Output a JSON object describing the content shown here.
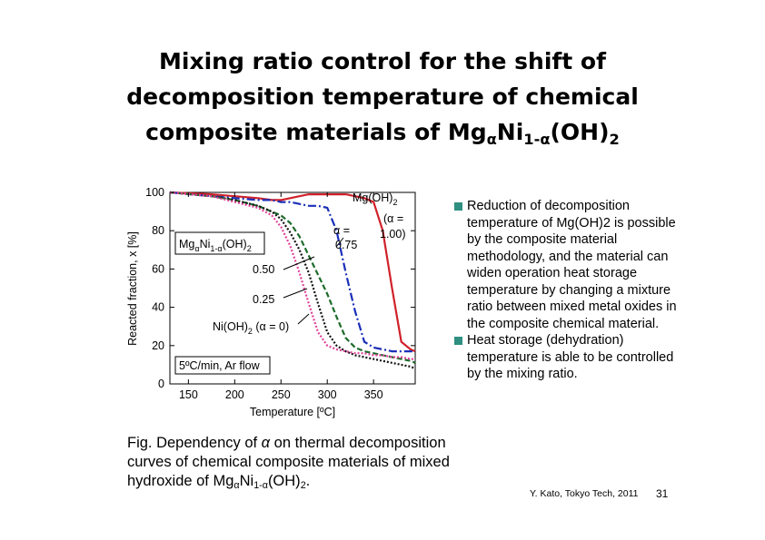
{
  "title": [
    "Mixing ratio control for the shift of",
    "decomposition temperature of chemical",
    "composite materials of Mg",
    "α",
    "Ni",
    "1-α",
    "(OH)",
    "2"
  ],
  "chart_data": {
    "type": "line",
    "x_label": "Temperature [ºC]",
    "y_label": "Reacted fraction, x [%]",
    "xlim": [
      130,
      395
    ],
    "ylim": [
      0,
      100
    ],
    "xticks": [
      150,
      200,
      250,
      300,
      350
    ],
    "yticks": [
      0,
      20,
      40,
      60,
      80,
      100
    ],
    "x": [
      130,
      175,
      200,
      225,
      240,
      250,
      260,
      270,
      280,
      290,
      300,
      310,
      320,
      330,
      340,
      350,
      360,
      370,
      380,
      390,
      395
    ],
    "series": [
      {
        "color": "#d0212a",
        "dash": "solid",
        "values": [
          100,
          99,
          98,
          97,
          96,
          96,
          97,
          98,
          99,
          99,
          99,
          99,
          99,
          98,
          97,
          95,
          80,
          50,
          22,
          18,
          17
        ]
      },
      {
        "color": "#1a2fb8",
        "dash": "dashdot",
        "values": [
          100,
          98,
          97,
          96,
          96,
          95,
          95,
          94,
          93,
          93,
          92,
          80,
          58,
          38,
          22,
          19,
          18,
          17,
          17,
          17,
          17
        ]
      },
      {
        "color": "#1d6b2a",
        "dash": "dashed",
        "values": [
          100,
          98,
          96,
          93,
          90,
          88,
          84,
          77,
          67,
          57,
          47,
          35,
          24,
          19,
          17,
          16,
          15,
          14,
          13,
          12,
          11
        ]
      },
      {
        "color": "#111111",
        "dash": "dotted",
        "values": [
          100,
          98,
          96,
          93,
          90,
          86,
          79,
          70,
          58,
          42,
          27,
          20,
          17,
          15,
          14,
          13,
          12,
          11,
          10,
          9,
          8
        ]
      },
      {
        "color": "#e0409a",
        "dash": "dotted",
        "values": [
          100,
          98,
          95,
          92,
          88,
          82,
          72,
          58,
          42,
          27,
          20,
          18,
          17,
          16,
          16,
          15,
          15,
          14,
          14,
          13,
          13
        ]
      }
    ],
    "annotations": {
      "mg_oh2": [
        "Mg(OH)",
        "2"
      ],
      "alpha_one_a": "(α =",
      "alpha_one_b": "1.00)",
      "alpha_075_a": "α =",
      "alpha_075_b": "0.75",
      "composite": [
        "Mg",
        "α",
        "Ni",
        "1-α",
        "(OH)",
        "2"
      ],
      "alpha_050": "0.50",
      "alpha_025": "0.25",
      "ni_oh2": [
        "Ni(OH)",
        "2",
        " (α = 0)"
      ],
      "condition": "5ºC/min, Ar flow"
    }
  },
  "caption": [
    "Fig.  Dependency of ",
    "α",
    " on thermal decomposition curves of chemical composite materials of mixed hydroxide of Mg",
    "α",
    "Ni",
    "1-α",
    "(OH)",
    "2",
    "."
  ],
  "bullets": [
    "Reduction of decomposition temperature of Mg(OH)2 is possible by the composite material methodology, and the material can widen operation heat storage temperature by changing a mixture ratio between mixed metal oxides in the composite chemical material.",
    "Heat storage (dehydration) temperature is able to be controlled by the mixing ratio."
  ],
  "footer": {
    "author": "Y. Kato, Tokyo Tech, 2011",
    "page": "31"
  }
}
